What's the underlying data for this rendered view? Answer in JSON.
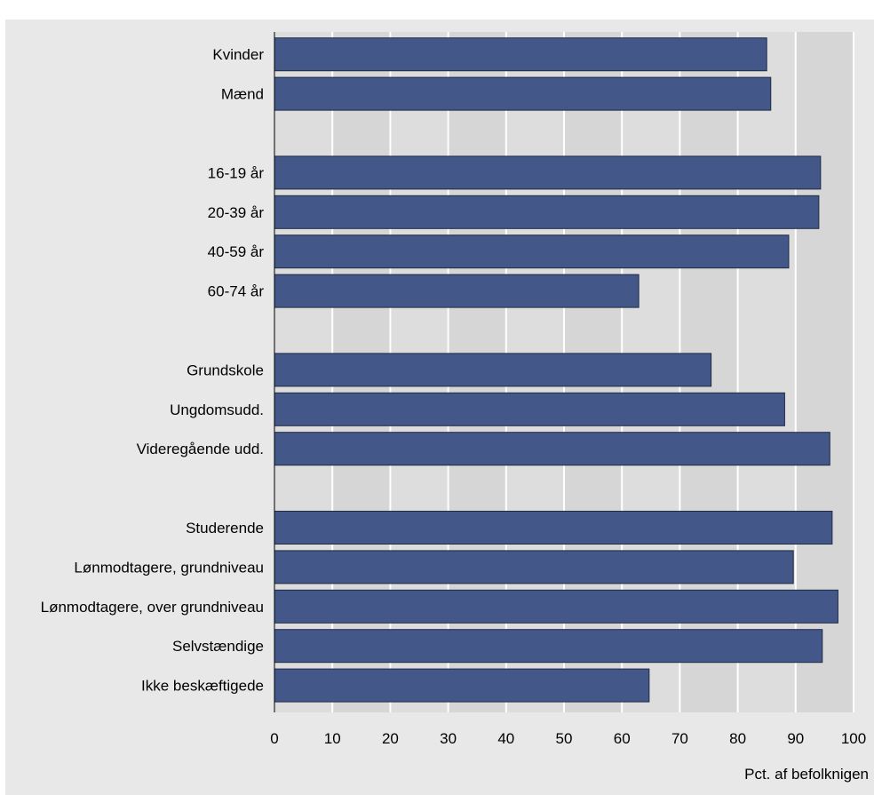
{
  "chart_data": {
    "type": "bar",
    "orientation": "horizontal",
    "title": "",
    "xlabel": "Pct. af befolknigen",
    "ylabel": "",
    "xlim": [
      0,
      100
    ],
    "x_ticks": [
      "0",
      "10",
      "20",
      "30",
      "40",
      "50",
      "60",
      "70",
      "80",
      "90",
      "100"
    ],
    "grid": true,
    "legend": "none",
    "bar_color": "#435888",
    "plot_background": "#dddddd",
    "groups": [
      {
        "categories": [
          "Kvinder",
          "Mænd"
        ],
        "values": [
          85,
          85.7
        ]
      },
      {
        "categories": [
          "16-19 år",
          "20-39 år",
          "40-59 år",
          "60-74 år"
        ],
        "values": [
          94.3,
          94,
          88.8,
          62.9
        ]
      },
      {
        "categories": [
          "Grundskole",
          "Ungdomsudd.",
          "Videregående udd."
        ],
        "values": [
          75.4,
          88.1,
          95.9
        ]
      },
      {
        "categories": [
          "Studerende",
          "Lønmodtagere, grundniveau",
          "Lønmodtagere, over grundniveau",
          "Selvstændige",
          "Ikke beskæftigede"
        ],
        "values": [
          96.3,
          89.6,
          97.3,
          94.6,
          64.7
        ]
      }
    ]
  }
}
